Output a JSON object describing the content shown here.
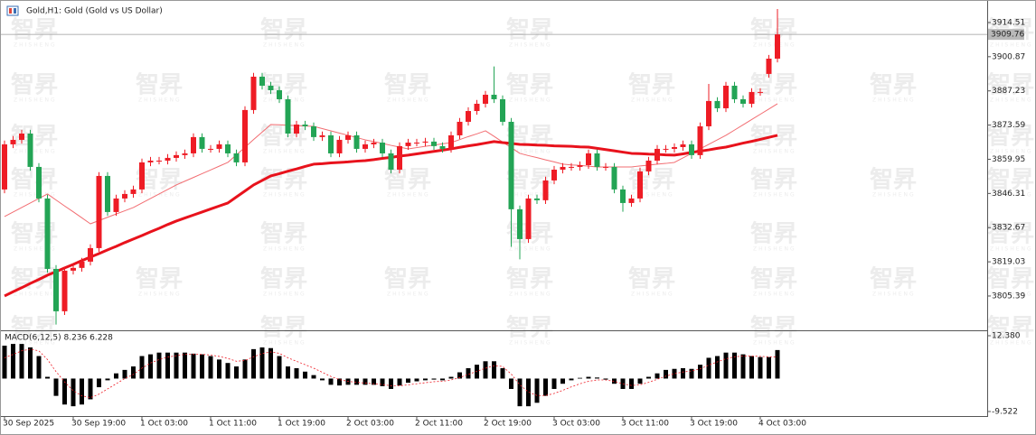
{
  "chart_data": {
    "type": "candlestick",
    "title": "Gold,H1:  Gold (Gold vs US Dollar)",
    "watermark": "智昇",
    "watermark_sub": "ZHISHENG",
    "categories": [
      "30 Sep 2025",
      null,
      null,
      null,
      null,
      null,
      null,
      null,
      "30 Sep 19:00",
      null,
      null,
      null,
      null,
      null,
      null,
      null,
      "1 Oct 03:00",
      null,
      null,
      null,
      null,
      null,
      null,
      null,
      "1 Oct 11:00",
      null,
      null,
      null,
      null,
      null,
      null,
      null,
      "1 Oct 19:00",
      null,
      null,
      null,
      null,
      null,
      null,
      null,
      "2 Oct 03:00",
      null,
      null,
      null,
      null,
      null,
      null,
      null,
      "2 Oct 11:00",
      null,
      null,
      null,
      null,
      null,
      null,
      null,
      "2 Oct 19:00",
      null,
      null,
      null,
      null,
      null,
      null,
      null,
      "3 Oct 03:00",
      null,
      null,
      null,
      null,
      null,
      null,
      null,
      "3 Oct 11:00",
      null,
      null,
      null,
      null,
      null,
      null,
      null,
      "3 Oct 19:00",
      null,
      null,
      null,
      null,
      null,
      null,
      null,
      "4 Oct 03:00",
      null,
      null
    ],
    "candles": {
      "up_color": "#ee1c25",
      "down_color": "#23a455",
      "open": [
        3847.9,
        3865.9,
        3867.7,
        3870.2,
        3856.9,
        3844.3,
        3816.2,
        3799.3,
        3815.5,
        3816.6,
        3819.1,
        3824.5,
        3853.3,
        3838.9,
        3844.3,
        3846.1,
        3847.9,
        3858.7,
        3859.4,
        3859.4,
        3860.5,
        3861.6,
        3862.3,
        3868.8,
        3864.1,
        3864.1,
        3865.9,
        3862.3,
        3858.7,
        3879.6,
        3892.9,
        3889.3,
        3887.5,
        3883.9,
        3870.2,
        3873.8,
        3873.1,
        3868.8,
        3869.5,
        3862.3,
        3867.7,
        3869.5,
        3864.1,
        3865.9,
        3866.6,
        3862.3,
        3855.8,
        3865.2,
        3866.6,
        3866.6,
        3867.0,
        3865.2,
        3864.1,
        3869.5,
        3874.9,
        3879.2,
        3882.1,
        3885.7,
        3883.9,
        3874.9,
        3840.0,
        3828.1,
        3844.3,
        3843.6,
        3851.5,
        3855.8,
        3856.9,
        3856.9,
        3857.6,
        3862.3,
        3856.9,
        3856.9,
        3847.9,
        3842.5,
        3844.3,
        3855.1,
        3859.4,
        3864.1,
        3864.1,
        3864.8,
        3865.9,
        3861.6,
        3873.1,
        3883.2,
        3880.3,
        3889.3,
        3883.9,
        3882.1,
        3886.8,
        3894.0,
        3900.1
      ],
      "high": [
        3867.4,
        3869.2,
        3871.7,
        3871.7,
        3858.4,
        3845.8,
        3817.7,
        3817.0,
        3818.1,
        3820.6,
        3826.0,
        3854.8,
        3854.8,
        3845.8,
        3847.6,
        3849.4,
        3860.2,
        3860.9,
        3860.9,
        3862.0,
        3863.1,
        3863.8,
        3870.3,
        3870.3,
        3865.6,
        3867.4,
        3867.4,
        3863.8,
        3881.1,
        3894.4,
        3894.4,
        3890.8,
        3889.0,
        3885.4,
        3875.3,
        3875.3,
        3874.6,
        3871.0,
        3871.0,
        3869.2,
        3871.0,
        3871.0,
        3867.4,
        3868.1,
        3868.1,
        3863.8,
        3866.7,
        3868.1,
        3868.1,
        3868.5,
        3868.5,
        3866.7,
        3871.0,
        3876.4,
        3880.7,
        3883.6,
        3887.2,
        3897.0,
        3885.4,
        3876.4,
        3841.5,
        3845.8,
        3845.8,
        3853.0,
        3857.3,
        3858.4,
        3858.4,
        3859.1,
        3863.8,
        3863.8,
        3858.4,
        3858.4,
        3849.4,
        3845.8,
        3856.6,
        3860.9,
        3865.6,
        3865.6,
        3866.3,
        3867.4,
        3867.4,
        3874.6,
        3890.0,
        3884.7,
        3890.8,
        3890.8,
        3885.4,
        3888.3,
        3888.3,
        3901.6,
        3919.9
      ],
      "low": [
        3846.4,
        3864.4,
        3866.2,
        3855.4,
        3842.8,
        3814.7,
        3794.0,
        3797.8,
        3814.0,
        3815.1,
        3817.6,
        3823.0,
        3837.4,
        3837.4,
        3842.8,
        3844.6,
        3846.4,
        3857.2,
        3857.9,
        3857.9,
        3859.0,
        3860.1,
        3860.8,
        3862.6,
        3862.6,
        3862.6,
        3860.8,
        3857.2,
        3857.2,
        3878.1,
        3887.8,
        3886.0,
        3882.4,
        3868.7,
        3868.7,
        3871.6,
        3867.3,
        3867.3,
        3860.8,
        3860.8,
        3866.2,
        3862.6,
        3862.6,
        3864.4,
        3860.8,
        3854.3,
        3854.3,
        3863.7,
        3865.1,
        3865.1,
        3863.7,
        3862.6,
        3862.6,
        3868.0,
        3873.4,
        3877.7,
        3880.6,
        3882.4,
        3873.4,
        3825.0,
        3820.0,
        3826.6,
        3842.1,
        3842.1,
        3850.0,
        3854.3,
        3855.4,
        3855.4,
        3856.1,
        3855.4,
        3855.4,
        3846.4,
        3839.0,
        3841.0,
        3842.8,
        3853.6,
        3857.9,
        3862.6,
        3862.6,
        3863.3,
        3860.1,
        3860.1,
        3871.6,
        3878.8,
        3878.8,
        3882.4,
        3880.6,
        3880.6,
        3885.3,
        3892.5,
        3898.6
      ],
      "close": [
        3865.9,
        3867.7,
        3870.2,
        3856.9,
        3844.3,
        3816.2,
        3799.3,
        3815.5,
        3816.6,
        3819.1,
        3824.5,
        3853.3,
        3838.9,
        3844.3,
        3846.1,
        3847.9,
        3858.7,
        3859.4,
        3859.4,
        3860.5,
        3861.6,
        3862.3,
        3868.8,
        3864.1,
        3864.1,
        3865.9,
        3862.3,
        3858.7,
        3879.6,
        3892.9,
        3889.3,
        3887.5,
        3883.9,
        3870.2,
        3873.8,
        3873.1,
        3868.8,
        3869.5,
        3862.3,
        3867.7,
        3869.5,
        3864.1,
        3865.9,
        3866.6,
        3862.3,
        3855.8,
        3865.2,
        3866.6,
        3866.6,
        3867.0,
        3865.2,
        3864.1,
        3869.5,
        3874.9,
        3879.2,
        3882.1,
        3885.7,
        3883.9,
        3874.9,
        3840.0,
        3828.1,
        3844.3,
        3843.6,
        3851.5,
        3855.8,
        3856.9,
        3856.9,
        3857.6,
        3862.3,
        3856.9,
        3856.9,
        3847.9,
        3842.5,
        3844.3,
        3855.1,
        3859.4,
        3864.1,
        3864.1,
        3864.8,
        3865.9,
        3861.6,
        3873.1,
        3883.2,
        3880.3,
        3889.3,
        3883.9,
        3882.1,
        3886.8,
        3886.8,
        3900.1,
        3909.76
      ]
    },
    "moving_averages": [
      {
        "color": "#f26d72",
        "width": 1,
        "values": [
          3837.1,
          3838.9,
          3840.7,
          3842.5,
          3844.3,
          3846.1,
          3843.7,
          3841.3,
          3839.0,
          3836.6,
          3834.2,
          3835.5,
          3836.8,
          3838.1,
          3839.4,
          3840.7,
          3842.5,
          3844.3,
          3846.1,
          3847.9,
          3849.7,
          3851.2,
          3852.7,
          3854.2,
          3855.7,
          3857.2,
          3858.7,
          3861.7,
          3864.7,
          3867.8,
          3870.8,
          3873.8,
          3873.7,
          3873.5,
          3873.4,
          3873.2,
          3873.1,
          3872.2,
          3871.3,
          3870.4,
          3869.5,
          3868.6,
          3867.7,
          3867.0,
          3866.3,
          3865.5,
          3864.8,
          3864.1,
          3864.6,
          3865.1,
          3865.6,
          3866.1,
          3866.6,
          3867.8,
          3869.0,
          3870.1,
          3871.3,
          3869.1,
          3866.8,
          3864.6,
          3862.3,
          3861.4,
          3860.6,
          3859.7,
          3858.9,
          3858.0,
          3857.7,
          3857.5,
          3857.2,
          3856.9,
          3856.9,
          3856.9,
          3856.9,
          3856.9,
          3857.3,
          3857.6,
          3858.0,
          3858.3,
          3858.7,
          3860.5,
          3862.3,
          3864.1,
          3865.9,
          3867.7,
          3869.5,
          3871.6,
          3873.7,
          3875.8,
          3877.9,
          3880.0,
          3882.1
        ]
      },
      {
        "color": "#e8121c",
        "width": 3,
        "values": [
          3805.4,
          3807.1,
          3808.7,
          3810.4,
          3812.0,
          3813.7,
          3815.1,
          3816.6,
          3818.0,
          3819.5,
          3820.9,
          3822.3,
          3823.8,
          3825.2,
          3826.7,
          3828.1,
          3829.5,
          3831.0,
          3832.4,
          3833.9,
          3835.3,
          3836.5,
          3837.7,
          3838.9,
          3840.1,
          3841.3,
          3842.5,
          3844.9,
          3847.3,
          3849.7,
          3851.5,
          3853.3,
          3854.2,
          3855.2,
          3856.1,
          3857.1,
          3858.0,
          3858.2,
          3858.5,
          3858.7,
          3858.9,
          3859.2,
          3859.4,
          3859.8,
          3860.3,
          3860.7,
          3861.2,
          3861.6,
          3862.1,
          3862.6,
          3863.1,
          3863.6,
          3864.1,
          3864.7,
          3865.3,
          3865.8,
          3866.4,
          3867.0,
          3866.6,
          3866.3,
          3865.9,
          3865.8,
          3865.6,
          3865.5,
          3865.3,
          3865.2,
          3865.1,
          3864.9,
          3864.8,
          3864.3,
          3863.8,
          3863.3,
          3862.8,
          3862.3,
          3862.2,
          3862.0,
          3861.9,
          3861.7,
          3861.6,
          3862.1,
          3862.7,
          3863.2,
          3863.7,
          3864.3,
          3864.8,
          3865.6,
          3866.4,
          3867.1,
          3867.9,
          3868.7,
          3869.5
        ]
      }
    ],
    "ylim": [
      3791.7,
      3923.5
    ],
    "yticks": [
      3914.51,
      3900.87,
      3887.23,
      3873.59,
      3859.95,
      3846.31,
      3832.67,
      3819.03,
      3805.39
    ],
    "last_price": 3909.76,
    "macd": {
      "label": "MACD(6,12,5) 8.236 6.228",
      "bar_color": "#000000",
      "signal_color": "#ee1c25",
      "ylim": [
        -10.83,
        13.68
      ],
      "yticks": [
        {
          "value": 12.38,
          "label": "12.380"
        },
        -9.522
      ],
      "histogram": [
        9.5,
        10,
        10,
        9,
        6.5,
        0.5,
        -5,
        -7.5,
        -8,
        -7.5,
        -6,
        -2.5,
        -0.5,
        1.5,
        2.5,
        3.5,
        6.5,
        7,
        7.5,
        7.5,
        7.5,
        7.5,
        7.2,
        7,
        6.5,
        5.5,
        4.5,
        3.5,
        5.5,
        8.5,
        9,
        8.8,
        6.5,
        3.5,
        3,
        2,
        1,
        -0.5,
        -1.8,
        -2,
        -1.8,
        -1.8,
        -1.8,
        -1.8,
        -2.2,
        -3,
        -2,
        -1.2,
        -0.8,
        -0.5,
        -0.3,
        -0.5,
        0.5,
        1.8,
        3,
        4,
        5,
        5,
        3,
        -3,
        -8,
        -8,
        -7,
        -5,
        -3,
        -1.5,
        -0.5,
        0.2,
        0.5,
        0.3,
        -0.3,
        -1.5,
        -3,
        -3,
        -1.5,
        0.5,
        1.5,
        2.5,
        2.8,
        3,
        2.8,
        4,
        6,
        6.5,
        7.5,
        7.5,
        7,
        6.5,
        6.2,
        6.2,
        8.236
      ],
      "signal": [
        6,
        7,
        8,
        8.5,
        8,
        5.5,
        2,
        -1,
        -3.5,
        -5,
        -5.5,
        -4.5,
        -3,
        -1.5,
        0,
        1.2,
        3,
        4.5,
        5.5,
        6.2,
        6.6,
        7,
        7,
        7,
        6.8,
        6.4,
        5.8,
        5,
        5.2,
        6.3,
        7.2,
        7.7,
        7.3,
        6,
        5,
        4,
        3,
        1.8,
        0.6,
        -0.3,
        -0.8,
        -1.1,
        -1.3,
        -1.5,
        -1.7,
        -2.1,
        -2.1,
        -1.8,
        -1.5,
        -1.2,
        -0.9,
        -0.8,
        -0.4,
        0.3,
        1.2,
        2.1,
        3,
        3.7,
        3.5,
        1.3,
        -1.8,
        -3.9,
        -4.9,
        -4.9,
        -4.3,
        -3.4,
        -2.4,
        -1.5,
        -0.8,
        -0.4,
        -0.4,
        -0.8,
        -1.5,
        -2,
        -1.8,
        -1.1,
        -0.2,
        0.7,
        1.4,
        1.9,
        2.2,
        2.8,
        3.9,
        4.8,
        5.7,
        6.3,
        6.5,
        6.5,
        6.4,
        6.3,
        6.228
      ]
    }
  }
}
